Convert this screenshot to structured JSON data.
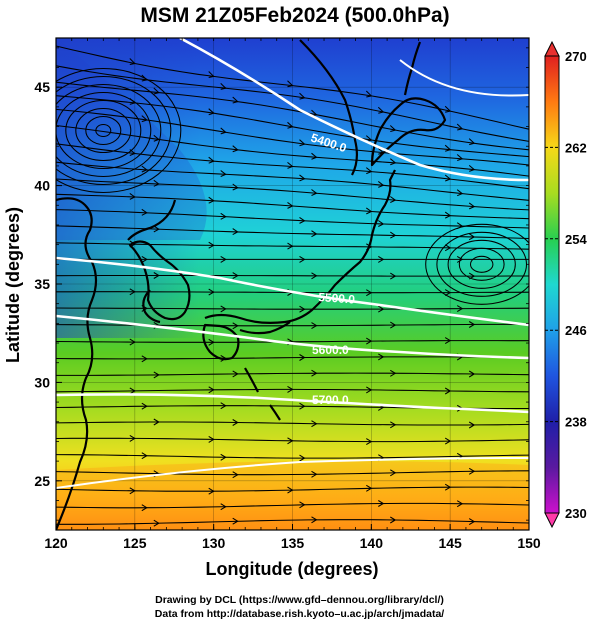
{
  "title": "MSM 21Z05Feb2024 (500.0hPa)",
  "xaxis": {
    "label": "Longitude (degrees)",
    "range": [
      120,
      150
    ],
    "ticks": [
      "120",
      "125",
      "130",
      "135",
      "140",
      "145",
      "150"
    ]
  },
  "yaxis": {
    "label": "Latitude  (degrees)",
    "range": [
      22.5,
      47.5
    ],
    "ticks": [
      "25",
      "30",
      "35",
      "40",
      "45"
    ]
  },
  "colorbar": {
    "range": [
      230,
      270
    ],
    "ticks": [
      "230",
      "238",
      "246",
      "254",
      "262",
      "270"
    ],
    "colors": [
      "#cc10cc",
      "#1f1fa8",
      "#1f44dd",
      "#1f99e8",
      "#1fd6d6",
      "#22d07a",
      "#4ccc20",
      "#a8dd20",
      "#f0e020",
      "#ffb014",
      "#ff7a10",
      "#ff3a10",
      "#dd2020"
    ]
  },
  "contours": [
    {
      "label": "5400.0"
    },
    {
      "label": "5500.0"
    },
    {
      "label": "5600.0"
    },
    {
      "label": "5700.0"
    }
  ],
  "credits": {
    "line1": "Drawing by DCL (https://www.gfd–dennou.org/library/dcl/)",
    "line2": "Data from http://database.rish.kyoto–u.ac.jp/arch/jmadata/"
  }
}
